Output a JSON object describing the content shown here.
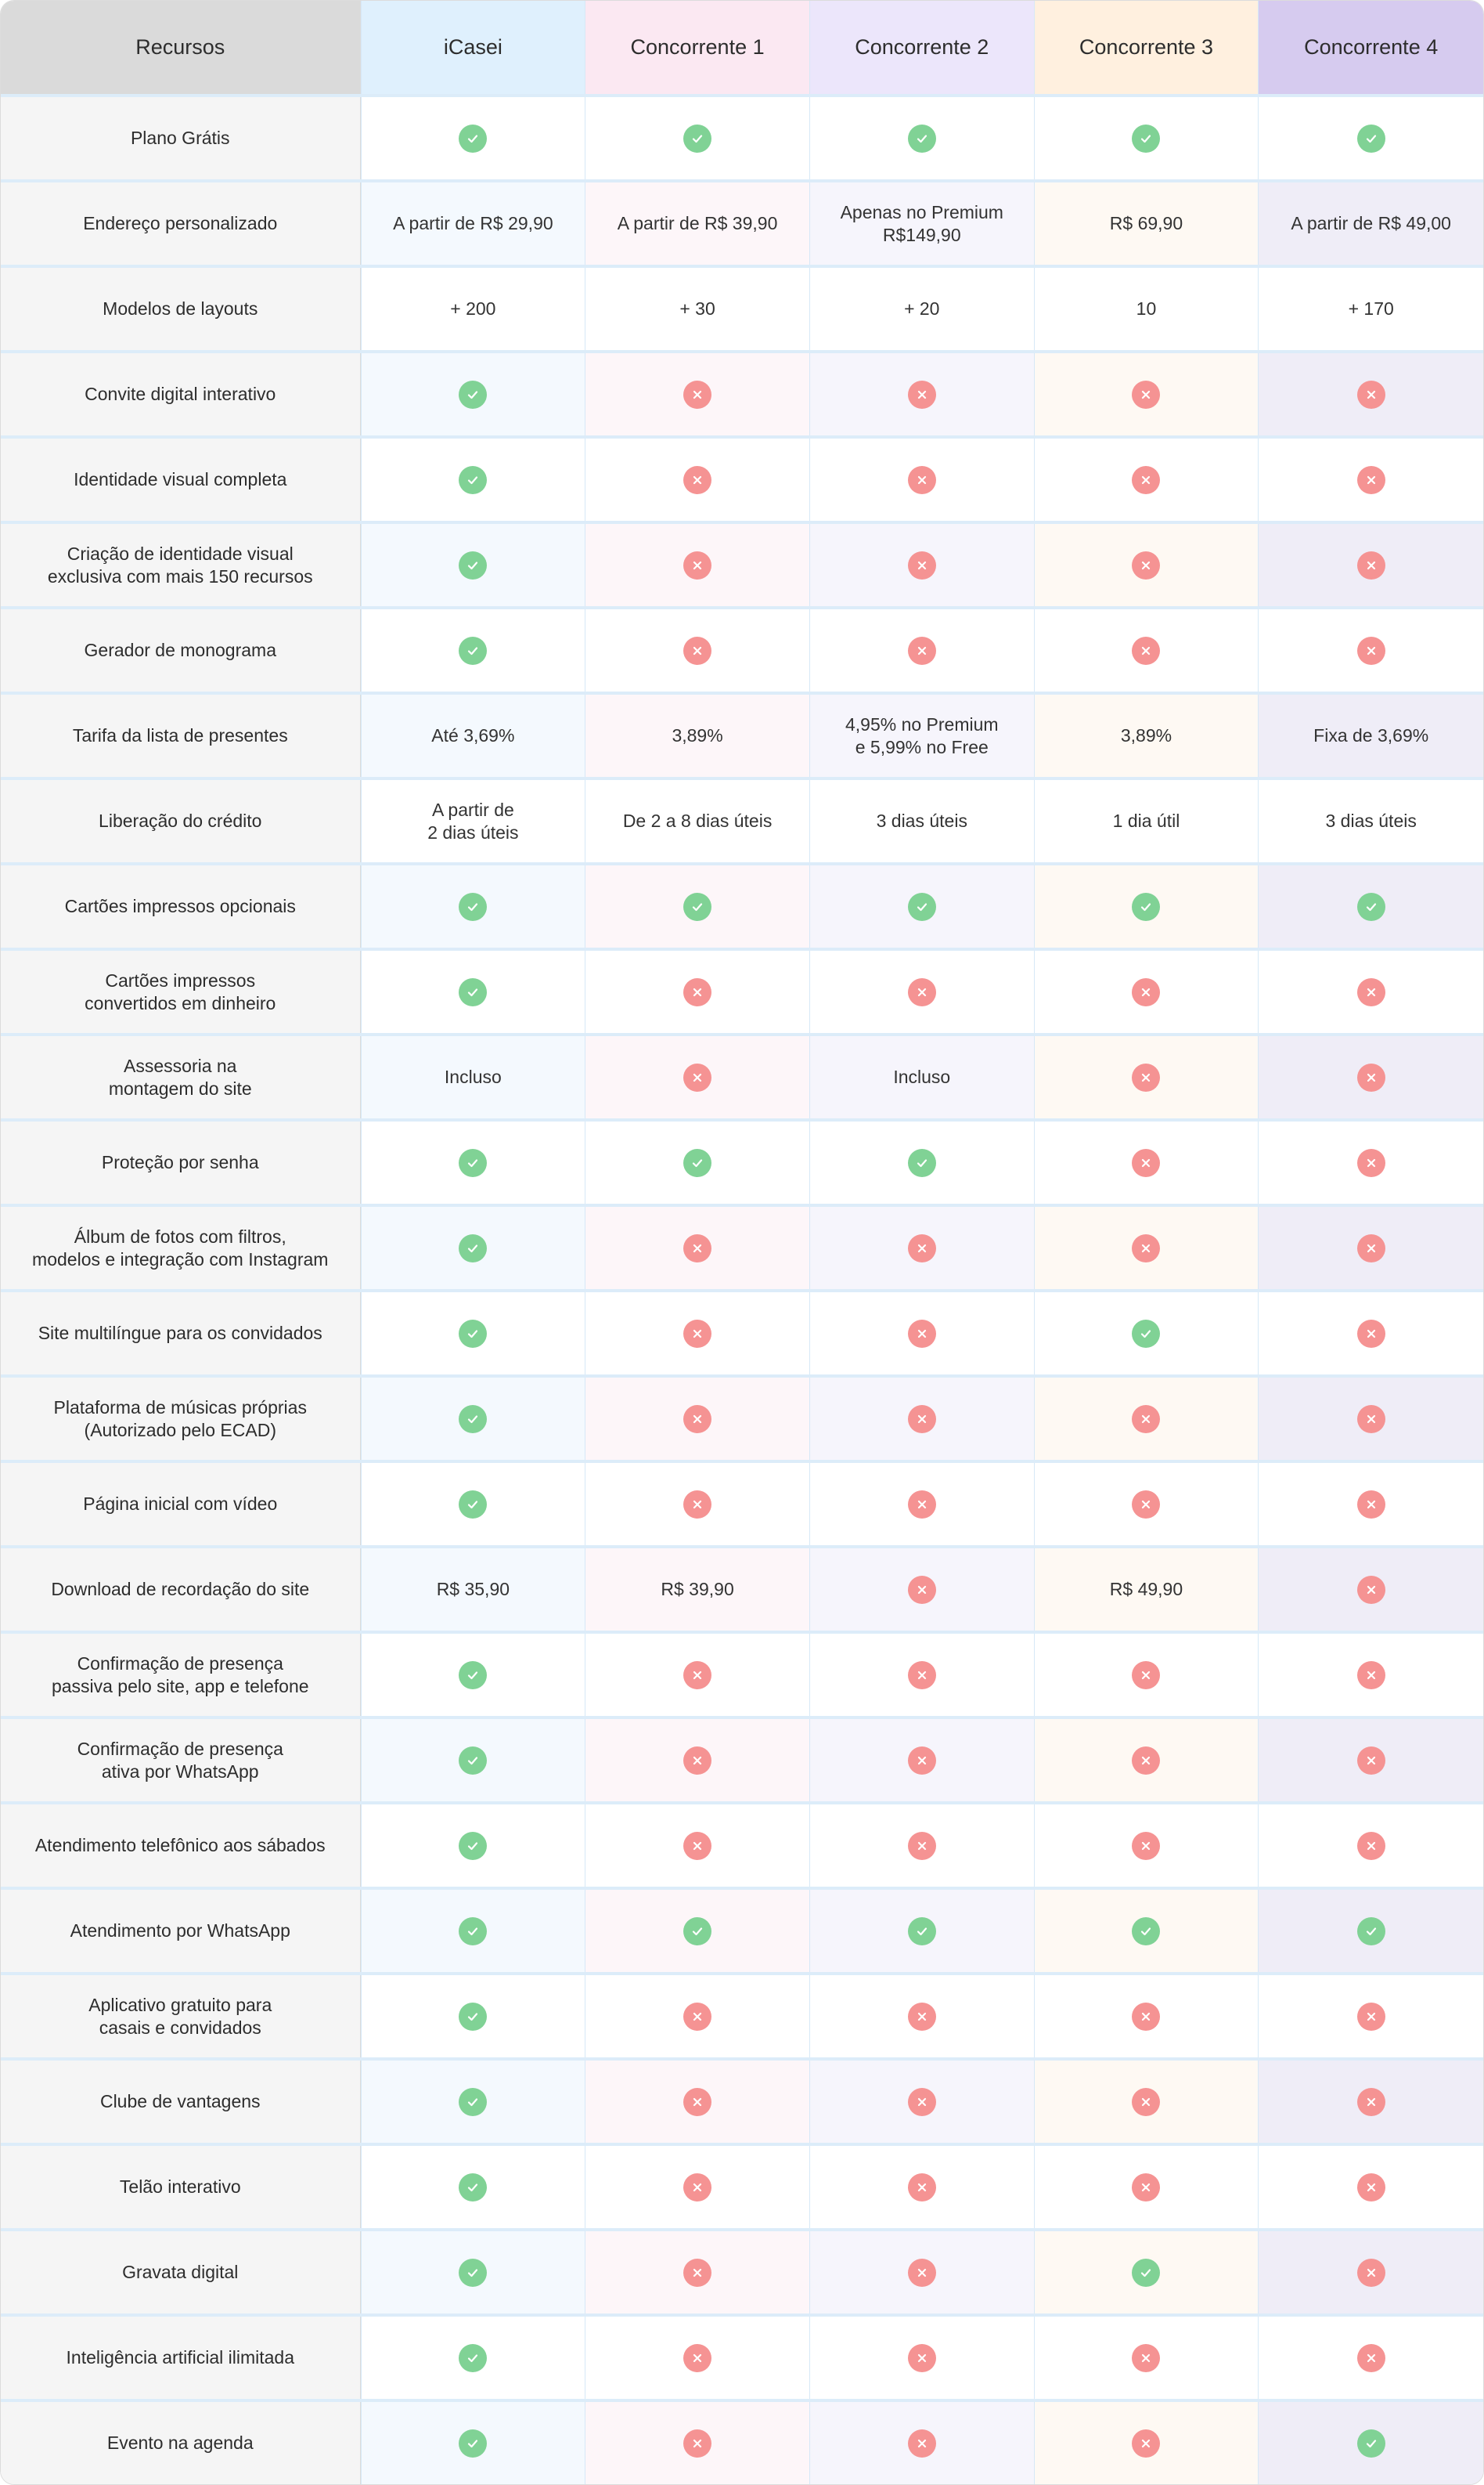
{
  "colors": {
    "yes": "#80d295",
    "no": "#f59393",
    "header_features": "#dadada",
    "header_icasei": "#dff0fd",
    "header_c1": "#fbe8f2",
    "header_c2": "#ece6fb",
    "header_c3": "#fff0df",
    "header_c4": "#d6cbef"
  },
  "header": {
    "features": "Recursos",
    "columns": [
      "iCasei",
      "Concorrente 1",
      "Concorrente 2",
      "Concorrente 3",
      "Concorrente 4"
    ]
  },
  "rows": [
    {
      "feature": "Plano Grátis",
      "values": [
        "yes",
        "yes",
        "yes",
        "yes",
        "yes"
      ]
    },
    {
      "feature": "Endereço personalizado",
      "values": [
        "A partir de R$ 29,90",
        "A partir de R$ 39,90",
        "Apenas no Premium\nR$149,90",
        "R$ 69,90",
        "A partir de R$ 49,00"
      ]
    },
    {
      "feature": "Modelos de layouts",
      "values": [
        "+ 200",
        "+ 30",
        "+ 20",
        "10",
        "+ 170"
      ]
    },
    {
      "feature": "Convite digital interativo",
      "values": [
        "yes",
        "no",
        "no",
        "no",
        "no"
      ]
    },
    {
      "feature": "Identidade visual completa",
      "values": [
        "yes",
        "no",
        "no",
        "no",
        "no"
      ]
    },
    {
      "feature": "Criação de identidade visual\nexclusiva com mais 150 recursos",
      "values": [
        "yes",
        "no",
        "no",
        "no",
        "no"
      ]
    },
    {
      "feature": "Gerador de monograma",
      "values": [
        "yes",
        "no",
        "no",
        "no",
        "no"
      ]
    },
    {
      "feature": "Tarifa da lista de presentes",
      "values": [
        "Até 3,69%",
        "3,89%",
        "4,95% no Premium\ne 5,99% no Free",
        "3,89%",
        "Fixa de 3,69%"
      ]
    },
    {
      "feature": "Liberação do crédito",
      "values": [
        "A partir de\n2 dias úteis",
        "De 2 a 8 dias úteis",
        "3 dias úteis",
        "1 dia útil",
        "3 dias úteis"
      ]
    },
    {
      "feature": "Cartões impressos opcionais",
      "values": [
        "yes",
        "yes",
        "yes",
        "yes",
        "yes"
      ]
    },
    {
      "feature": "Cartões impressos\nconvertidos em dinheiro",
      "values": [
        "yes",
        "no",
        "no",
        "no",
        "no"
      ]
    },
    {
      "feature": "Assessoria na\nmontagem do site",
      "values": [
        "Incluso",
        "no",
        "Incluso",
        "no",
        "no"
      ]
    },
    {
      "feature": "Proteção por senha",
      "values": [
        "yes",
        "yes",
        "yes",
        "no",
        "no"
      ]
    },
    {
      "feature": "Álbum de fotos com filtros,\nmodelos e integração com Instagram",
      "values": [
        "yes",
        "no",
        "no",
        "no",
        "no"
      ]
    },
    {
      "feature": "Site multilíngue para os convidados",
      "values": [
        "yes",
        "no",
        "no",
        "yes",
        "no"
      ]
    },
    {
      "feature": "Plataforma de músicas próprias\n(Autorizado pelo ECAD)",
      "values": [
        "yes",
        "no",
        "no",
        "no",
        "no"
      ]
    },
    {
      "feature": "Página inicial com vídeo",
      "values": [
        "yes",
        "no",
        "no",
        "no",
        "no"
      ]
    },
    {
      "feature": "Download de recordação do site",
      "values": [
        "R$ 35,90",
        "R$ 39,90",
        "no",
        "R$ 49,90",
        "no"
      ]
    },
    {
      "feature": "Confirmação de presença\npassiva pelo site, app e telefone",
      "values": [
        "yes",
        "no",
        "no",
        "no",
        "no"
      ]
    },
    {
      "feature": "Confirmação de presença\nativa por WhatsApp",
      "values": [
        "yes",
        "no",
        "no",
        "no",
        "no"
      ]
    },
    {
      "feature": "Atendimento telefônico aos sábados",
      "values": [
        "yes",
        "no",
        "no",
        "no",
        "no"
      ]
    },
    {
      "feature": "Atendimento por WhatsApp",
      "values": [
        "yes",
        "yes",
        "yes",
        "yes",
        "yes"
      ]
    },
    {
      "feature": "Aplicativo gratuito para\ncasais e convidados",
      "values": [
        "yes",
        "no",
        "no",
        "no",
        "no"
      ]
    },
    {
      "feature": "Clube de vantagens",
      "values": [
        "yes",
        "no",
        "no",
        "no",
        "no"
      ]
    },
    {
      "feature": "Telão interativo",
      "values": [
        "yes",
        "no",
        "no",
        "no",
        "no"
      ]
    },
    {
      "feature": "Gravata digital",
      "values": [
        "yes",
        "no",
        "no",
        "yes",
        "no"
      ]
    },
    {
      "feature": "Inteligência artificial ilimitada",
      "values": [
        "yes",
        "no",
        "no",
        "no",
        "no"
      ]
    },
    {
      "feature": "Evento na agenda",
      "values": [
        "yes",
        "no",
        "no",
        "no",
        "yes"
      ]
    }
  ],
  "icons": {
    "yes": "check-circle-icon",
    "no": "x-circle-icon"
  }
}
